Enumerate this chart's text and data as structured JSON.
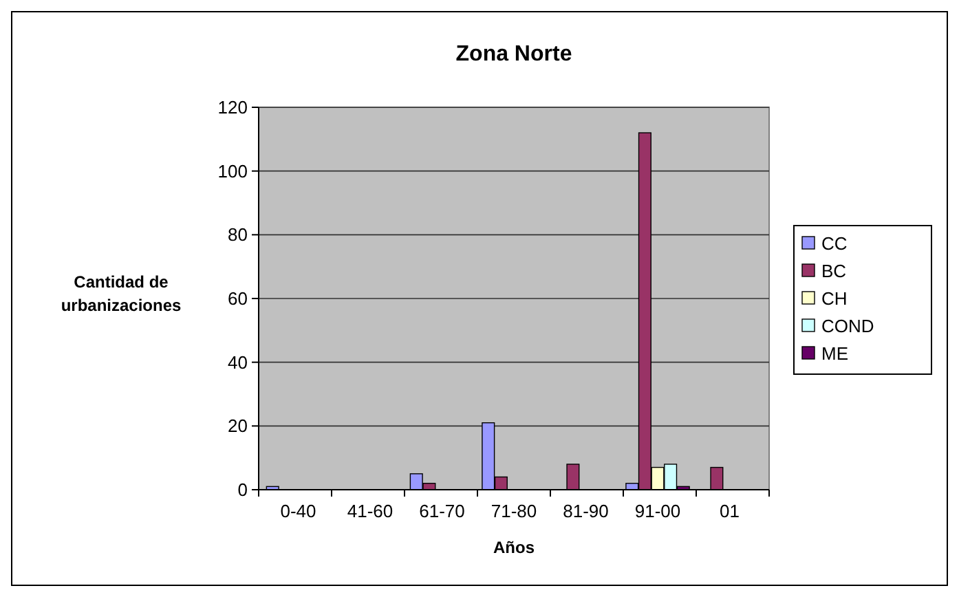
{
  "chart_data": {
    "type": "bar",
    "title": "Zona Norte",
    "xlabel": "Años",
    "ylabel": "Cantidad de urbanizaciones",
    "categories": [
      "0-40",
      "41-60",
      "61-70",
      "71-80",
      "81-90",
      "91-00",
      "01"
    ],
    "series": [
      {
        "name": "CC",
        "color": "#9999ff",
        "values": [
          1,
          null,
          5,
          21,
          null,
          2,
          null
        ]
      },
      {
        "name": "BC",
        "color": "#993366",
        "values": [
          null,
          null,
          2,
          4,
          8,
          112,
          7
        ]
      },
      {
        "name": "CH",
        "color": "#ffffcc",
        "values": [
          null,
          null,
          null,
          null,
          null,
          7,
          null
        ]
      },
      {
        "name": "COND",
        "color": "#ccffff",
        "values": [
          null,
          null,
          null,
          null,
          null,
          8,
          null
        ]
      },
      {
        "name": "ME",
        "color": "#660066",
        "values": [
          null,
          null,
          null,
          null,
          null,
          1,
          null
        ]
      }
    ],
    "ylim": [
      0,
      120
    ],
    "yticks": [
      0,
      20,
      40,
      60,
      80,
      100,
      120
    ],
    "grid": "y",
    "legend": "right"
  }
}
